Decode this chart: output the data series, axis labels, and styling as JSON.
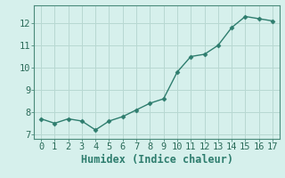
{
  "x": [
    0,
    1,
    2,
    3,
    4,
    5,
    6,
    7,
    8,
    9,
    10,
    11,
    12,
    13,
    14,
    15,
    16,
    17
  ],
  "y": [
    7.7,
    7.5,
    7.7,
    7.6,
    7.2,
    7.6,
    7.8,
    8.1,
    8.4,
    8.6,
    9.8,
    10.5,
    10.6,
    11.0,
    11.8,
    12.3,
    12.2,
    12.1
  ],
  "line_color": "#2e7d6e",
  "marker_color": "#2e7d6e",
  "background_color": "#d6f0ec",
  "grid_color": "#b8d8d2",
  "xlabel": "Humidex (Indice chaleur)",
  "xlim": [
    -0.5,
    17.5
  ],
  "ylim": [
    6.8,
    12.8
  ],
  "yticks": [
    7,
    8,
    9,
    10,
    11,
    12
  ],
  "xticks": [
    0,
    1,
    2,
    3,
    4,
    5,
    6,
    7,
    8,
    9,
    10,
    11,
    12,
    13,
    14,
    15,
    16,
    17
  ],
  "tick_fontsize": 7.5,
  "xlabel_fontsize": 8.5,
  "marker_size": 2.5,
  "line_width": 1.0,
  "spine_color": "#4a8a7a"
}
